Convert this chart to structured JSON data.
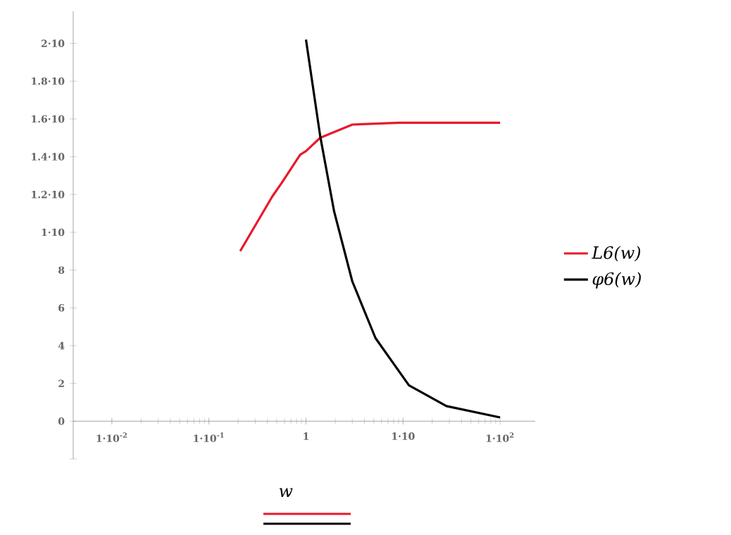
{
  "chart_data": {
    "type": "line",
    "xlabel": "w",
    "log": "x",
    "xlim": [
      0.004,
      230
    ],
    "ylim": [
      -2,
      21.7
    ],
    "xticks": [
      {
        "value": 0.01,
        "label": "1·10$^{-2}$"
      },
      {
        "value": 0.1,
        "label": "1·10$^{-1}$"
      },
      1,
      {
        "value": 10,
        "label": "1·10"
      },
      {
        "value": 100,
        "label": "1·10$^{2}$"
      }
    ],
    "yticks": [
      {
        "value": -2,
        "label": null
      },
      0,
      2,
      4,
      6,
      8,
      {
        "value": 10,
        "label": "1·10"
      },
      {
        "value": 12,
        "label": "1.2·10"
      },
      {
        "value": 14,
        "label": "1.4·10"
      },
      {
        "value": 16,
        "label": "1.6·10"
      },
      {
        "value": 18,
        "label": "1.8·10"
      },
      {
        "value": 20,
        "label": "2·10"
      }
    ],
    "legend": "right",
    "grid": false,
    "marker": "none",
    "line_style": "solid",
    "series": [
      {
        "name": "L6(w)",
        "color": "#e8192c",
        "x": [
          0.21,
          0.45,
          0.56,
          0.87,
          1,
          1.4,
          3.0,
          9.1,
          100
        ],
        "values": [
          9.0,
          11.9,
          12.6,
          14.1,
          14.3,
          15.0,
          15.7,
          15.8,
          15.8
        ]
      },
      {
        "name": "φ6(w)",
        "color": "#000000",
        "x": [
          1,
          1.4,
          1.95,
          3.0,
          5.2,
          11.5,
          28,
          100
        ],
        "values": [
          20.2,
          15.1,
          11.1,
          7.4,
          4.4,
          1.9,
          0.8,
          0.2
        ]
      }
    ]
  }
}
